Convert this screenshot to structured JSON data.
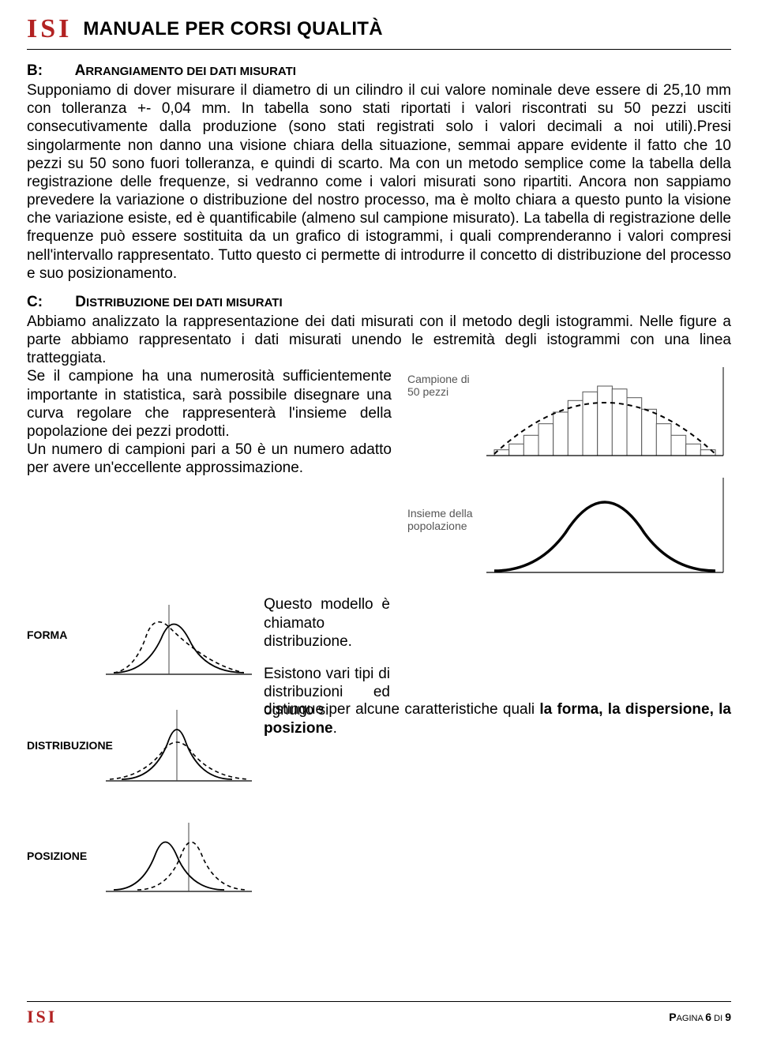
{
  "header": {
    "logo_text": "ISI",
    "title": "MANUALE PER CORSI QUALITÀ"
  },
  "section_b": {
    "label": "B:",
    "heading_lead": "A",
    "heading_rest": "RRANGIAMENTO DEI DATI MISURATI",
    "paragraph": "Supponiamo di dover misurare il diametro di un cilindro il cui valore nominale deve essere di 25,10 mm con tolleranza +- 0,04 mm. In tabella sono stati riportati i valori riscontrati su 50 pezzi usciti consecutivamente dalla produzione (sono stati registrati solo i valori decimali a noi utili).Presi singolarmente non danno una visione chiara della situazione, semmai appare evidente il fatto che 10 pezzi su 50 sono fuori tolleranza, e quindi di scarto. Ma con un metodo semplice come la tabella della registrazione delle frequenze, si vedranno come i valori misurati sono ripartiti. Ancora non sappiamo prevedere la variazione o distribuzione del nostro processo, ma è molto chiara a questo punto la visione che variazione esiste, ed è quantificabile (almeno sul campione misurato). La tabella di registrazione delle frequenze può essere sostituita da un grafico di istogrammi, i quali comprenderanno i valori compresi nell'intervallo rappresentato. Tutto questo ci permette di introdurre il concetto di distribuzione del processo e suo posizionamento."
  },
  "section_c": {
    "label": "C:",
    "heading_lead": "D",
    "heading_rest": "ISTRIBUZIONE DEI DATI MISURATI",
    "para1": "Abbiamo analizzato la rappresentazione dei dati misurati con il metodo degli istogrammi. Nelle figure a parte abbiamo rappresentato i dati misurati unendo le estremità degli istogrammi con una linea tratteggiata.",
    "left_text1": "Se il campione ha una numerosità sufficientemente importante in statistica, sarà possibile disegnare una curva regolare che rappresenterà l'insieme della popolazione dei pezzi prodotti.",
    "left_text2": "Un numero di campioni pari a 50 è un numero adatto per avere un'eccellente approssimazione.",
    "mid_text1": "Questo modello è chiamato distribuzione.",
    "mid_text2": "Esistono vari tipi di distribuzioni ed ognuno si",
    "run_on_plain": "distingue per alcune caratteristiche quali ",
    "run_on_bold": "la forma, la dispersione, la posizione",
    "run_on_end": "."
  },
  "figures": {
    "top_label": "Campione di 50 pezzi",
    "bottom_label": "Insieme della popolazione",
    "mini1": "FORMA",
    "mini2": "DISTRIBUZIONE",
    "mini3": "POSIZIONE",
    "colors": {
      "axis": "#000000",
      "bar_fill": "#ffffff",
      "bar_stroke": "#555555",
      "dashed": "#000000",
      "solid_curve": "#000000",
      "label_text": "#555555"
    },
    "histogram_bars": [
      4,
      8,
      14,
      22,
      30,
      38,
      44,
      48,
      46,
      40,
      32,
      22,
      14,
      8,
      4
    ],
    "label_fontsize": 14
  },
  "footer": {
    "logo_text": "ISI",
    "page_label_lead": "P",
    "page_label_rest": "AGINA ",
    "page_current": "6",
    "page_sep": " DI ",
    "page_total": "9"
  }
}
